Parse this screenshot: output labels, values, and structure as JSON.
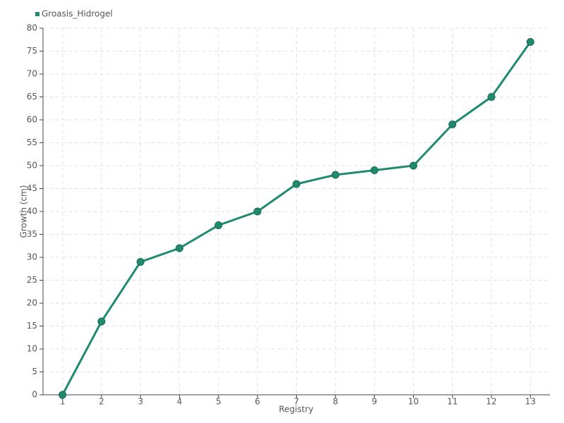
{
  "chart_data": {
    "type": "line",
    "xlabel": "Registry",
    "ylabel": "Growth (cm)",
    "categories": [
      "1",
      "2",
      "3",
      "4",
      "5",
      "6",
      "7",
      "8",
      "9",
      "10",
      "11",
      "12",
      "13"
    ],
    "series": [
      {
        "name": "Groasis_Hidrogel",
        "color": "#1f8a6e",
        "values": [
          0,
          16,
          29,
          32,
          37,
          40,
          46,
          48,
          49,
          50,
          59,
          65,
          77
        ]
      }
    ],
    "ylim": [
      0,
      80
    ],
    "yticks": [
      0,
      5,
      10,
      15,
      20,
      25,
      30,
      35,
      40,
      45,
      50,
      55,
      60,
      65,
      70,
      75,
      80
    ],
    "grid": true,
    "legend": "top-left"
  }
}
